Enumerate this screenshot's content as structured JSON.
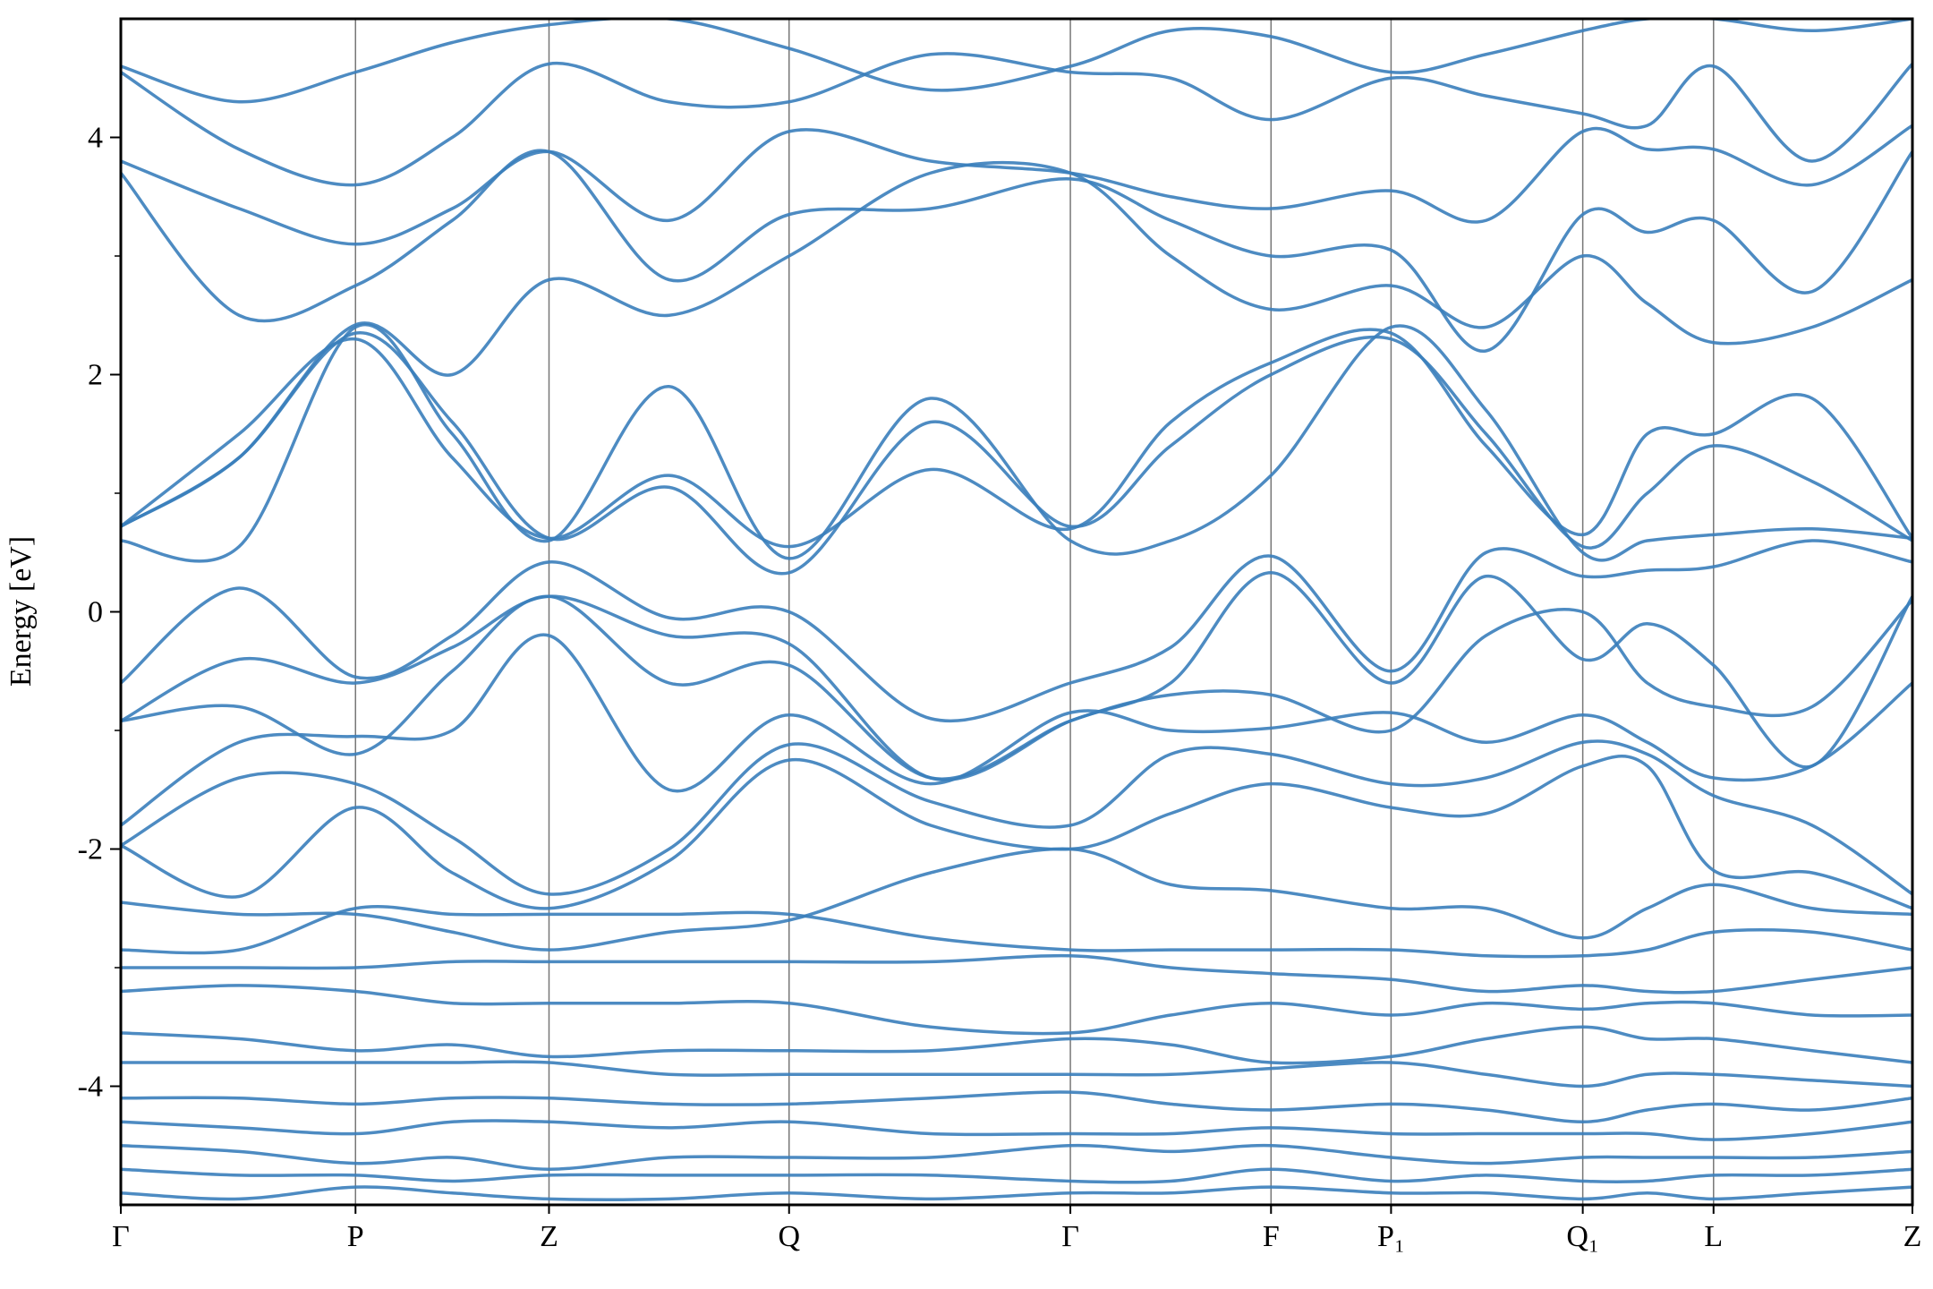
{
  "chart_data": {
    "type": "line",
    "y_label": "Energy [eV]",
    "color": "#3a7ebb",
    "ylim": [
      -5,
      5
    ],
    "yticks": [
      -4,
      -2,
      0,
      2,
      4
    ],
    "yminorticks": [
      -3,
      -1,
      1,
      3
    ],
    "xlim": [
      0,
      1
    ],
    "xticks": [
      {
        "value": 0,
        "label": "Γ"
      },
      {
        "value": 0.131,
        "label": "P"
      },
      {
        "value": 0.239,
        "label": "Z"
      },
      {
        "value": 0.373,
        "label": "Q"
      },
      {
        "value": 0.53,
        "label": "Γ"
      },
      {
        "value": 0.642,
        "label": "F"
      },
      {
        "value": 0.709,
        "label": "P₁"
      },
      {
        "value": 0.816,
        "label": "Q₁"
      },
      {
        "value": 0.889,
        "label": "L"
      },
      {
        "value": 1,
        "label": "Z"
      }
    ],
    "x": [
      0,
      0.066,
      0.131,
      0.185,
      0.239,
      0.306,
      0.373,
      0.452,
      0.53,
      0.586,
      0.642,
      0.709,
      0.762,
      0.816,
      0.852,
      0.889,
      0.944,
      1
    ],
    "series": [
      {
        "values": [
          0.6,
          0.55,
          2.4,
          1.5,
          0.6,
          1.9,
          0.45,
          1.8,
          0.6,
          0.6,
          1.15,
          2.4,
          1.7,
          0.5,
          0.6,
          0.65,
          0.7,
          0.62
        ]
      },
      {
        "values": [
          0.72,
          1.5,
          2.3,
          1.3,
          0.62,
          1.15,
          0.55,
          1.2,
          0.7,
          1.6,
          2.1,
          2.35,
          1.4,
          0.65,
          1.5,
          1.5,
          1.8,
          0.62
        ]
      },
      {
        "values": [
          0.72,
          1.3,
          2.35,
          1.6,
          0.62,
          1.05,
          0.33,
          1.6,
          0.72,
          1.4,
          2.0,
          2.3,
          1.5,
          0.55,
          1.0,
          1.4,
          1.1,
          0.6
        ]
      },
      {
        "values": [
          0.72,
          1.3,
          2.42,
          2.0,
          2.8,
          2.5,
          3.0,
          3.7,
          3.7,
          3.0,
          2.55,
          2.75,
          2.4,
          3.0,
          2.6,
          2.27,
          2.4,
          2.8
        ]
      },
      {
        "values": [
          3.7,
          2.5,
          2.75,
          3.3,
          3.88,
          2.8,
          3.35,
          3.4,
          3.65,
          3.3,
          3.0,
          3.05,
          2.2,
          3.35,
          3.2,
          3.3,
          2.7,
          3.88
        ]
      },
      {
        "values": [
          3.8,
          3.4,
          3.1,
          3.4,
          3.88,
          3.3,
          4.05,
          3.8,
          3.7,
          3.5,
          3.4,
          3.55,
          3.3,
          4.05,
          3.9,
          3.9,
          3.6,
          4.1
        ]
      },
      {
        "values": [
          4.55,
          3.9,
          3.6,
          4.0,
          4.62,
          4.3,
          4.3,
          4.7,
          4.55,
          4.5,
          4.15,
          4.5,
          4.35,
          4.2,
          4.1,
          4.6,
          3.8,
          4.62
        ]
      },
      {
        "values": [
          4.6,
          4.3,
          4.55,
          4.8,
          4.95,
          5.0,
          4.75,
          4.4,
          4.6,
          4.9,
          4.85,
          4.55,
          4.7,
          4.9,
          5.0,
          5.0,
          4.9,
          5.0
        ]
      },
      {
        "values": [
          -0.6,
          0.2,
          -0.55,
          -0.2,
          0.42,
          -0.05,
          0.0,
          -0.9,
          -0.6,
          -0.3,
          0.47,
          -0.5,
          0.5,
          0.3,
          0.35,
          0.38,
          0.6,
          0.42
        ]
      },
      {
        "values": [
          -0.92,
          -0.4,
          -0.6,
          -0.3,
          0.13,
          -0.2,
          -0.27,
          -1.4,
          -0.92,
          -0.6,
          0.33,
          -0.6,
          0.3,
          -0.4,
          -0.1,
          -0.45,
          -1.3,
          0.13
        ]
      },
      {
        "values": [
          -0.92,
          -0.8,
          -1.2,
          -0.5,
          0.13,
          -0.6,
          -0.45,
          -1.4,
          -0.92,
          -0.7,
          -0.7,
          -1.0,
          -0.2,
          0.0,
          -0.6,
          -0.8,
          -0.8,
          0.1
        ]
      },
      {
        "values": [
          -1.8,
          -1.1,
          -1.05,
          -1.0,
          -0.2,
          -1.5,
          -0.87,
          -1.45,
          -0.85,
          -1.0,
          -0.98,
          -0.85,
          -1.1,
          -0.87,
          -1.1,
          -1.4,
          -1.3,
          -0.6
        ]
      },
      {
        "values": [
          -1.97,
          -1.4,
          -1.45,
          -1.9,
          -2.38,
          -2.0,
          -1.12,
          -1.6,
          -1.8,
          -1.2,
          -1.2,
          -1.45,
          -1.4,
          -1.1,
          -1.2,
          -1.55,
          -1.8,
          -2.38
        ]
      },
      {
        "values": [
          -1.97,
          -2.4,
          -1.65,
          -2.2,
          -2.5,
          -2.1,
          -1.25,
          -1.8,
          -2.0,
          -1.7,
          -1.45,
          -1.65,
          -1.7,
          -1.3,
          -1.3,
          -2.18,
          -2.2,
          -2.5
        ]
      },
      {
        "values": [
          -2.45,
          -2.55,
          -2.55,
          -2.7,
          -2.85,
          -2.7,
          -2.6,
          -2.2,
          -2.0,
          -2.3,
          -2.35,
          -2.5,
          -2.5,
          -2.75,
          -2.5,
          -2.3,
          -2.5,
          -2.55
        ]
      },
      {
        "values": [
          -2.85,
          -2.85,
          -2.5,
          -2.55,
          -2.55,
          -2.55,
          -2.55,
          -2.75,
          -2.85,
          -2.85,
          -2.85,
          -2.85,
          -2.9,
          -2.9,
          -2.85,
          -2.7,
          -2.7,
          -2.85
        ]
      },
      {
        "values": [
          -3.0,
          -3.0,
          -3.0,
          -2.95,
          -2.95,
          -2.95,
          -2.95,
          -2.95,
          -2.9,
          -3.0,
          -3.05,
          -3.1,
          -3.2,
          -3.15,
          -3.2,
          -3.2,
          -3.1,
          -3.0
        ]
      },
      {
        "values": [
          -3.2,
          -3.15,
          -3.2,
          -3.3,
          -3.3,
          -3.3,
          -3.3,
          -3.5,
          -3.55,
          -3.4,
          -3.3,
          -3.4,
          -3.3,
          -3.35,
          -3.3,
          -3.3,
          -3.4,
          -3.4
        ]
      },
      {
        "values": [
          -3.55,
          -3.6,
          -3.7,
          -3.65,
          -3.75,
          -3.7,
          -3.7,
          -3.7,
          -3.6,
          -3.65,
          -3.8,
          -3.75,
          -3.6,
          -3.5,
          -3.6,
          -3.6,
          -3.7,
          -3.8
        ]
      },
      {
        "values": [
          -3.8,
          -3.8,
          -3.8,
          -3.8,
          -3.8,
          -3.9,
          -3.9,
          -3.9,
          -3.9,
          -3.9,
          -3.85,
          -3.8,
          -3.9,
          -4.0,
          -3.9,
          -3.9,
          -3.95,
          -4.0
        ]
      },
      {
        "values": [
          -4.1,
          -4.1,
          -4.15,
          -4.1,
          -4.1,
          -4.15,
          -4.15,
          -4.1,
          -4.05,
          -4.15,
          -4.2,
          -4.15,
          -4.2,
          -4.3,
          -4.2,
          -4.15,
          -4.2,
          -4.1
        ]
      },
      {
        "values": [
          -4.3,
          -4.35,
          -4.4,
          -4.3,
          -4.3,
          -4.35,
          -4.3,
          -4.4,
          -4.4,
          -4.4,
          -4.35,
          -4.4,
          -4.4,
          -4.4,
          -4.4,
          -4.45,
          -4.4,
          -4.3
        ]
      },
      {
        "values": [
          -4.5,
          -4.55,
          -4.65,
          -4.6,
          -4.7,
          -4.6,
          -4.6,
          -4.6,
          -4.5,
          -4.55,
          -4.5,
          -4.6,
          -4.65,
          -4.6,
          -4.6,
          -4.6,
          -4.6,
          -4.55
        ]
      },
      {
        "values": [
          -4.7,
          -4.75,
          -4.75,
          -4.8,
          -4.75,
          -4.75,
          -4.75,
          -4.75,
          -4.8,
          -4.8,
          -4.7,
          -4.8,
          -4.75,
          -4.8,
          -4.8,
          -4.75,
          -4.75,
          -4.7
        ]
      },
      {
        "values": [
          -4.9,
          -4.95,
          -4.85,
          -4.9,
          -4.95,
          -4.95,
          -4.9,
          -4.95,
          -4.9,
          -4.9,
          -4.85,
          -4.9,
          -4.9,
          -4.95,
          -4.9,
          -4.95,
          -4.9,
          -4.85
        ]
      }
    ]
  }
}
